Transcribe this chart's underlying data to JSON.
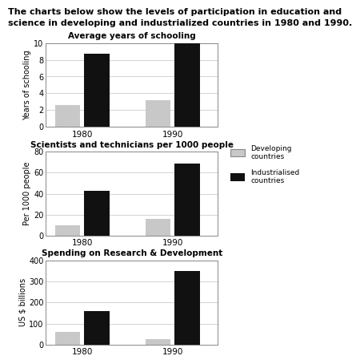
{
  "title_line1": "The charts below show the levels of participation in education and",
  "title_line2": "science in developing and industrialized countries in 1980 and 1990.",
  "chart1": {
    "title": "Average years of schooling",
    "ylabel": "Years of schooling",
    "ylim": [
      0,
      10
    ],
    "yticks": [
      0,
      2,
      4,
      6,
      8,
      10
    ],
    "years": [
      "1980",
      "1990"
    ],
    "developing": [
      2.6,
      3.2
    ],
    "industrialised": [
      8.7,
      10.5
    ]
  },
  "chart2": {
    "title": "Scientists and technicians per 1000 people",
    "ylabel": "Per 1000 people",
    "ylim": [
      0,
      80
    ],
    "yticks": [
      0,
      20,
      40,
      60,
      80
    ],
    "years": [
      "1980",
      "1990"
    ],
    "developing": [
      10,
      16
    ],
    "industrialised": [
      43,
      69
    ]
  },
  "chart3": {
    "title": "Spending on Research & Development",
    "ylabel": "US $ billions",
    "ylim": [
      0,
      400
    ],
    "yticks": [
      0,
      100,
      200,
      300,
      400
    ],
    "years": [
      "1980",
      "1990"
    ],
    "developing": [
      60,
      25
    ],
    "industrialised": [
      160,
      350
    ]
  },
  "legend": {
    "developing_label": "Developing\ncountries",
    "industrialised_label": "Industrialised\ncountries",
    "developing_color": "#c8c8c8",
    "industrialised_color": "#111111"
  },
  "bar_width": 0.28,
  "background_color": "#ffffff"
}
